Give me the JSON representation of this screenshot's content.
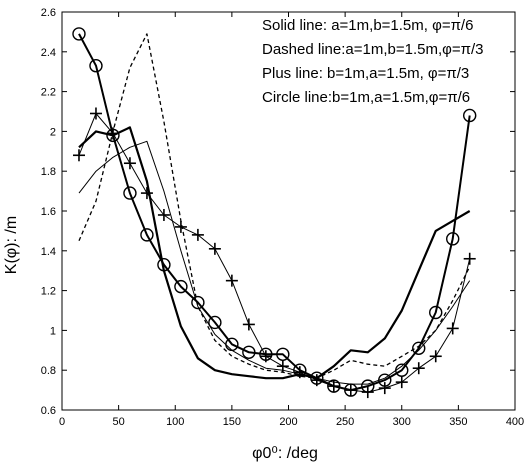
{
  "chart_data": {
    "type": "line",
    "title": "",
    "xlabel": "φ0⁰: /deg",
    "ylabel": "K(φ): /m",
    "xlim": [
      0,
      400
    ],
    "ylim": [
      0.6,
      2.6
    ],
    "xticks": [
      0,
      50,
      100,
      150,
      200,
      250,
      300,
      350,
      400
    ],
    "yticks": [
      0.6,
      0.8,
      1,
      1.2,
      1.4,
      1.6,
      1.8,
      2,
      2.2,
      2.4,
      2.6
    ],
    "grid": false,
    "legend_position": "top-right",
    "legend": [
      "Solid line: a=1m,b=1.5m, φ=π/6",
      "Dashed line:a=1m,b=1.5m,φ=π/3",
      "Plus line: b=1m,a=1.5m, φ=π/3",
      "Circle line:b=1m,a=1.5m,φ=π/6"
    ],
    "series": [
      {
        "style": "solid-thick",
        "x": [
          15,
          30,
          45,
          60,
          75,
          90,
          105,
          120,
          135,
          150,
          165,
          180,
          195,
          210,
          225,
          240,
          255,
          270,
          285,
          300,
          315,
          330,
          345,
          360
        ],
        "y": [
          1.92,
          2.0,
          1.98,
          2.02,
          1.75,
          1.3,
          1.02,
          0.86,
          0.8,
          0.78,
          0.77,
          0.76,
          0.76,
          0.78,
          0.76,
          0.82,
          0.9,
          0.89,
          0.96,
          1.1,
          1.3,
          1.5,
          1.55,
          1.6
        ]
      },
      {
        "style": "dashed",
        "x": [
          15,
          30,
          45,
          60,
          75,
          90,
          105,
          120,
          135,
          150,
          165,
          180,
          195,
          210,
          225,
          240,
          255,
          270,
          285,
          300,
          315,
          330,
          345,
          360
        ],
        "y": [
          1.45,
          1.65,
          2.0,
          2.32,
          2.49,
          2.05,
          1.55,
          1.12,
          0.95,
          0.87,
          0.83,
          0.8,
          0.79,
          0.77,
          0.76,
          0.8,
          0.85,
          0.83,
          0.82,
          0.87,
          0.92,
          1.0,
          1.15,
          1.32
        ]
      },
      {
        "style": "thin",
        "x": [
          15,
          30,
          45,
          60,
          75,
          90,
          105,
          120,
          135,
          150,
          165,
          180,
          195,
          210,
          225,
          240,
          255,
          270,
          285,
          300,
          315,
          330,
          345,
          360
        ],
        "y": [
          1.69,
          1.8,
          1.87,
          1.92,
          1.95,
          1.7,
          1.4,
          1.12,
          0.98,
          0.9,
          0.85,
          0.81,
          0.8,
          0.78,
          0.76,
          0.74,
          0.73,
          0.73,
          0.76,
          0.82,
          0.9,
          1.0,
          1.12,
          1.25
        ]
      },
      {
        "style": "plus",
        "x": [
          15,
          30,
          45,
          60,
          75,
          90,
          105,
          120,
          135,
          150,
          165,
          180,
          195,
          210,
          225,
          240,
          255,
          270,
          285,
          300,
          315,
          330,
          345,
          360
        ],
        "y": [
          1.88,
          2.09,
          1.99,
          1.84,
          1.69,
          1.58,
          1.52,
          1.48,
          1.41,
          1.25,
          1.03,
          0.87,
          0.82,
          0.79,
          0.75,
          0.72,
          0.7,
          0.69,
          0.71,
          0.74,
          0.81,
          0.87,
          1.01,
          1.36
        ]
      },
      {
        "style": "circle",
        "x": [
          15,
          30,
          45,
          60,
          75,
          90,
          105,
          120,
          135,
          150,
          165,
          180,
          195,
          210,
          225,
          240,
          255,
          270,
          285,
          300,
          315,
          330,
          345,
          360
        ],
        "y": [
          2.49,
          2.33,
          1.98,
          1.69,
          1.48,
          1.33,
          1.22,
          1.14,
          1.04,
          0.93,
          0.89,
          0.88,
          0.88,
          0.8,
          0.76,
          0.72,
          0.7,
          0.72,
          0.75,
          0.8,
          0.91,
          1.09,
          1.46,
          2.08
        ]
      }
    ]
  }
}
